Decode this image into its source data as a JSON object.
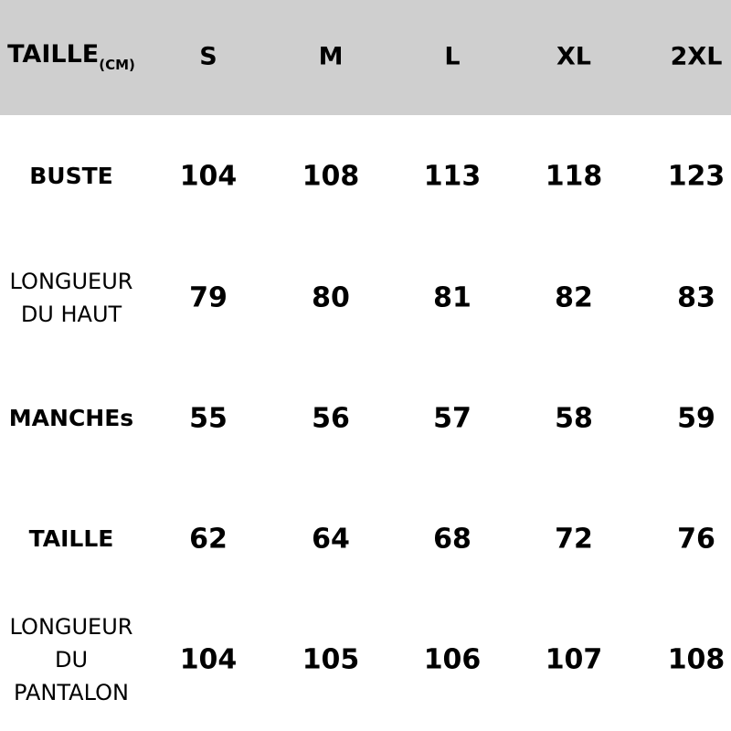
{
  "header": {
    "title": "TAILLE",
    "unit": "(CM)",
    "sizes": [
      "S",
      "M",
      "L",
      "XL",
      "2XL"
    ]
  },
  "rows": [
    {
      "label_lines": [
        "BUSTE"
      ],
      "bold": true,
      "values": [
        "104",
        "108",
        "113",
        "118",
        "123"
      ]
    },
    {
      "label_lines": [
        "LONGUEUR",
        "DU HAUT"
      ],
      "bold": false,
      "values": [
        "79",
        "80",
        "81",
        "82",
        "83"
      ]
    },
    {
      "label_lines": [
        "MANCHEs"
      ],
      "bold": true,
      "values": [
        "55",
        "56",
        "57",
        "58",
        "59"
      ]
    },
    {
      "label_lines": [
        "TAILLE"
      ],
      "bold": true,
      "values": [
        "62",
        "64",
        "68",
        "72",
        "76"
      ]
    },
    {
      "label_lines": [
        "LONGUEUR",
        "DU",
        "PANTALON"
      ],
      "bold": false,
      "values": [
        "104",
        "105",
        "106",
        "107",
        "108"
      ]
    }
  ],
  "colors": {
    "header_bg": "#cfcfcf"
  }
}
